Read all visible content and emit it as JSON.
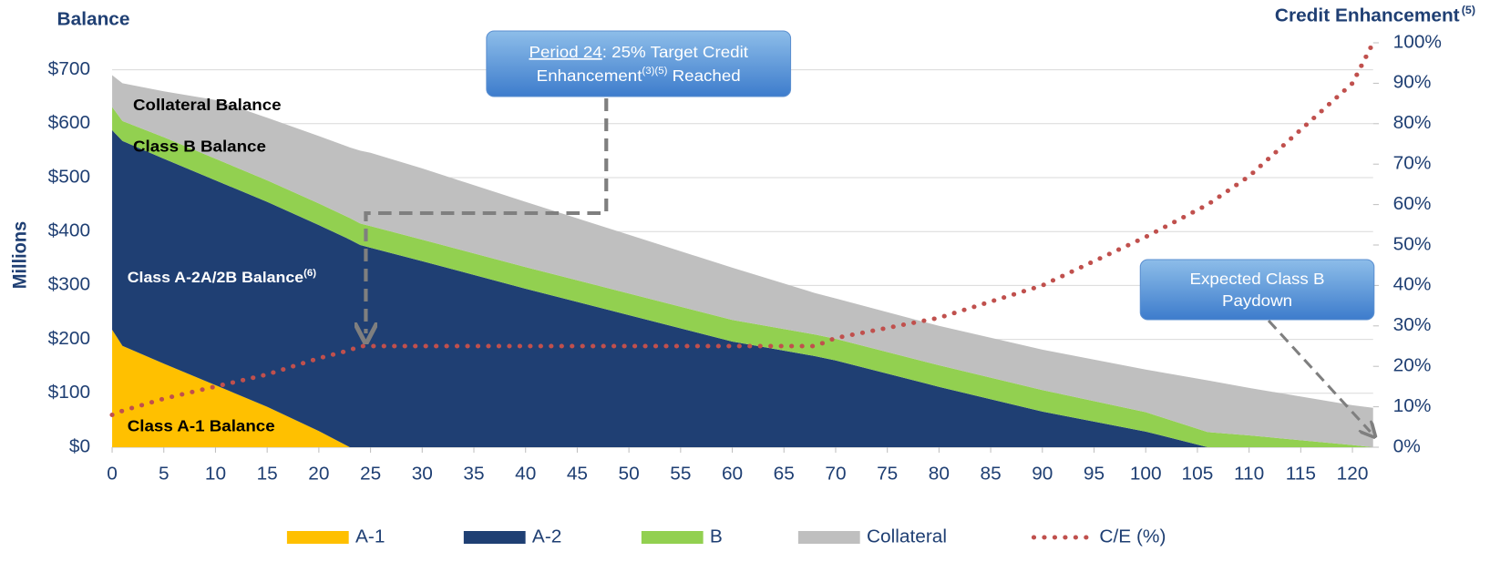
{
  "chart_data": {
    "type": "area",
    "y_title": "Balance",
    "y_axis_label": "Millions",
    "y2_title": "Credit Enhancement",
    "y2_title_sup": "(5)",
    "x": [
      0,
      1,
      5,
      10,
      15,
      20,
      23,
      24,
      25,
      30,
      40,
      50,
      60,
      68,
      70,
      80,
      90,
      100,
      106,
      110,
      120,
      122
    ],
    "series": [
      {
        "name": "A-1",
        "color": "#ffc000",
        "values": [
          218,
          188,
          155,
          115,
          75,
          30,
          0,
          0,
          0,
          0,
          0,
          0,
          0,
          0,
          0,
          0,
          0,
          0,
          0,
          0,
          0,
          0
        ]
      },
      {
        "name": "A-2",
        "color": "#1f3f73",
        "values": [
          370,
          380,
          380,
          380,
          380,
          382,
          385,
          375,
          370,
          345,
          294,
          245,
          196,
          169,
          161,
          112,
          66,
          29,
          0,
          0,
          0,
          0
        ]
      },
      {
        "name": "B",
        "color": "#92d050",
        "values": [
          43,
          37,
          40,
          40,
          40,
          40,
          40,
          40,
          40,
          40,
          40,
          40,
          40,
          40,
          40,
          40,
          40,
          36,
          28,
          22,
          4,
          0
        ]
      },
      {
        "name": "Collateral",
        "color": "#bfbfbf",
        "values": [
          59,
          70,
          85,
          109,
          116,
          125,
          131,
          135,
          136,
          132,
          121,
          109,
          97,
          77,
          75,
          73,
          75,
          79,
          96,
          88,
          74,
          73
        ]
      },
      {
        "name": "C/E (%)",
        "color": "#c0504d",
        "type": "line",
        "axis": "y2",
        "values": [
          8,
          9,
          12,
          15,
          18,
          22,
          24,
          25,
          25,
          25,
          25,
          25,
          25,
          25,
          27,
          32,
          40,
          52,
          60,
          67,
          90,
          100
        ]
      }
    ],
    "xlim": [
      0,
      122
    ],
    "xticks": [
      0,
      5,
      10,
      15,
      20,
      25,
      30,
      35,
      40,
      45,
      50,
      55,
      60,
      65,
      70,
      75,
      80,
      85,
      90,
      95,
      100,
      105,
      110,
      115,
      120
    ],
    "ylim": [
      0,
      750
    ],
    "yticks": [
      {
        "value": 0,
        "label": "$0"
      },
      {
        "value": 100,
        "label": "$100"
      },
      {
        "value": 200,
        "label": "$200"
      },
      {
        "value": 300,
        "label": "$300"
      },
      {
        "value": 400,
        "label": "$400"
      },
      {
        "value": 500,
        "label": "$500"
      },
      {
        "value": 600,
        "label": "$600"
      },
      {
        "value": 700,
        "label": "$700"
      }
    ],
    "y2lim": [
      0,
      100
    ],
    "y2ticks": [
      {
        "value": 0,
        "label": "0%"
      },
      {
        "value": 10,
        "label": "10%"
      },
      {
        "value": 20,
        "label": "20%"
      },
      {
        "value": 30,
        "label": "30%"
      },
      {
        "value": 40,
        "label": "40%"
      },
      {
        "value": 50,
        "label": "50%"
      },
      {
        "value": 60,
        "label": "60%"
      },
      {
        "value": 70,
        "label": "70%"
      },
      {
        "value": 80,
        "label": "80%"
      },
      {
        "value": 90,
        "label": "90%"
      },
      {
        "value": {
          "value": 100,
          "label": "100%"
        },
        "label": "100%"
      }
    ],
    "grid": true,
    "legend": "bottom",
    "annotations": [
      {
        "text": "Collateral Balance"
      },
      {
        "text": "Class B Balance"
      },
      {
        "text": "Class A-2A/2B Balance",
        "sup": "(6)"
      },
      {
        "text": "Class A-1 Balance"
      }
    ],
    "callouts": [
      {
        "link": "Period 24",
        "line1": ": 25% Target Credit",
        "line2": "Enhancement",
        "sup": "(3)(5)",
        "line2_end": " Reached"
      },
      {
        "line1": "Expected Class B",
        "line2": "Paydown"
      }
    ]
  }
}
